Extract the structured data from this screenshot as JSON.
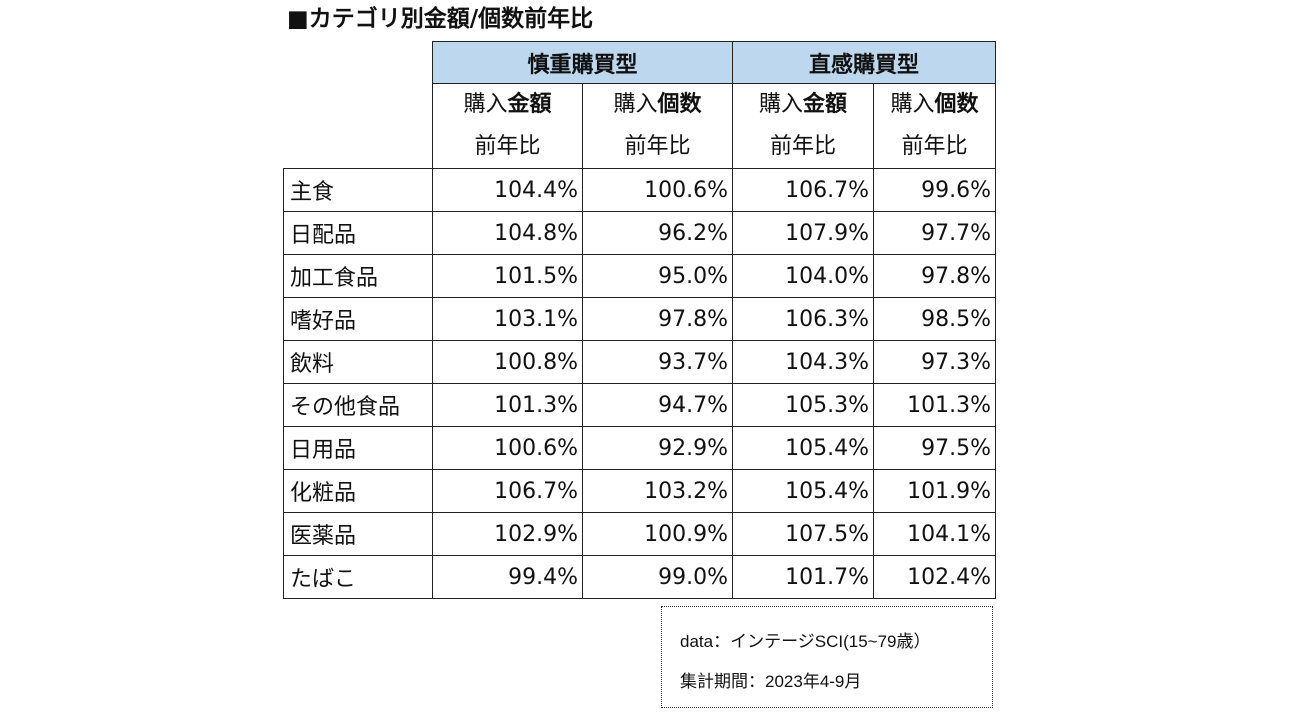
{
  "chart_data": {
    "type": "table",
    "title": "■カテゴリ別金額/個数前年比",
    "groups": [
      "慎重購買型",
      "直感購買型"
    ],
    "columns": [
      {
        "prefix": "購入",
        "emphasis": "金額",
        "second_line": "前年比"
      },
      {
        "prefix": "購入",
        "emphasis": "個数",
        "second_line": "前年比"
      },
      {
        "prefix": "購入",
        "emphasis": "金額",
        "second_line": "前年比"
      },
      {
        "prefix": "購入",
        "emphasis": "個数",
        "second_line": "前年比"
      }
    ],
    "rows": [
      {
        "category": "主食",
        "values": [
          "104.4%",
          "100.6%",
          "106.7%",
          "99.6%"
        ]
      },
      {
        "category": "日配品",
        "values": [
          "104.8%",
          "96.2%",
          "107.9%",
          "97.7%"
        ]
      },
      {
        "category": "加工食品",
        "values": [
          "101.5%",
          "95.0%",
          "104.0%",
          "97.8%"
        ]
      },
      {
        "category": "嗜好品",
        "values": [
          "103.1%",
          "97.8%",
          "106.3%",
          "98.5%"
        ]
      },
      {
        "category": "飲料",
        "values": [
          "100.8%",
          "93.7%",
          "104.3%",
          "97.3%"
        ]
      },
      {
        "category": "その他食品",
        "values": [
          "101.3%",
          "94.7%",
          "105.3%",
          "101.3%"
        ]
      },
      {
        "category": "日用品",
        "values": [
          "100.6%",
          "92.9%",
          "105.4%",
          "97.5%"
        ]
      },
      {
        "category": "化粧品",
        "values": [
          "106.7%",
          "103.2%",
          "105.4%",
          "101.9%"
        ]
      },
      {
        "category": "医薬品",
        "values": [
          "102.9%",
          "100.9%",
          "107.5%",
          "104.1%"
        ]
      },
      {
        "category": "たばこ",
        "values": [
          "99.4%",
          "99.0%",
          "101.7%",
          "102.4%"
        ]
      }
    ]
  },
  "note": {
    "source": "data：インテージSCI(15~79歳）",
    "period": "集計期間：2023年4-9月"
  },
  "colors": {
    "group_header_bg": "#bdd7ee",
    "border": "#222222",
    "text": "#111111"
  }
}
